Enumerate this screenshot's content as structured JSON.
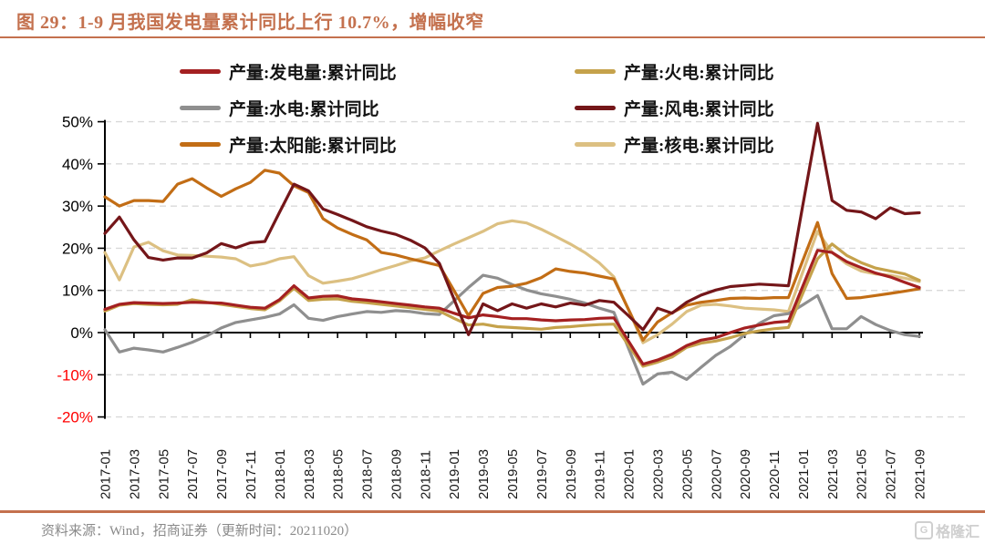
{
  "figure": {
    "title": "图 29：1-9 月我国发电量累计同比上行 10.7%，增幅收窄"
  },
  "legend_order": [
    "generation",
    "thermal",
    "hydro",
    "wind",
    "solar",
    "nuclear"
  ],
  "legend_labels": {
    "generation": "产量:发电量:累计同比",
    "thermal": "产量:火电:累计同比",
    "hydro": "产量:水电:累计同比",
    "wind": "产量:风电:累计同比",
    "solar": "产量:太阳能:累计同比",
    "nuclear": "产量:核电:累计同比"
  },
  "chart_data": {
    "type": "line",
    "title": "1-9月我国发电量累计同比",
    "xlabel": "",
    "ylabel": "",
    "ylim": [
      -20,
      50
    ],
    "grid": "horizontal-dashed",
    "legend_position": "top",
    "yticks": [
      {
        "v": 50,
        "label": "50%"
      },
      {
        "v": 40,
        "label": "40%"
      },
      {
        "v": 30,
        "label": "30%"
      },
      {
        "v": 20,
        "label": "20%"
      },
      {
        "v": 10,
        "label": "10%"
      },
      {
        "v": 0,
        "label": "0%"
      },
      {
        "v": -10,
        "label": "-10%"
      },
      {
        "v": -20,
        "label": "-20%"
      }
    ],
    "negative_tick_color": "#ff0000",
    "tick_color": "#1a1a1a",
    "grid_color": "#d9d9d9",
    "x": [
      "2017-01",
      "2017-02",
      "2017-03",
      "2017-04",
      "2017-05",
      "2017-06",
      "2017-07",
      "2017-08",
      "2017-09",
      "2017-10",
      "2017-11",
      "2017-12",
      "2018-01",
      "2018-02",
      "2018-03",
      "2018-04",
      "2018-05",
      "2018-06",
      "2018-07",
      "2018-08",
      "2018-09",
      "2018-10",
      "2018-11",
      "2018-12",
      "2019-01",
      "2019-02",
      "2019-03",
      "2019-04",
      "2019-05",
      "2019-06",
      "2019-07",
      "2019-08",
      "2019-09",
      "2019-10",
      "2019-11",
      "2019-12",
      "2020-01",
      "2020-02",
      "2020-03",
      "2020-04",
      "2020-05",
      "2020-06",
      "2020-07",
      "2020-08",
      "2020-09",
      "2020-10",
      "2020-11",
      "2020-12",
      "2021-01",
      "2021-02",
      "2021-03",
      "2021-04",
      "2021-05",
      "2021-06",
      "2021-07",
      "2021-08",
      "2021-09"
    ],
    "x_labeled_every": 2,
    "series": [
      {
        "key": "nuclear",
        "name": "产量:核电:累计同比",
        "color": "#dcc082",
        "values": [
          19.0,
          12.5,
          20.3,
          21.4,
          19.4,
          18.4,
          18.3,
          18.1,
          17.9,
          17.5,
          15.8,
          16.4,
          17.5,
          18.0,
          13.5,
          11.7,
          12.2,
          12.8,
          13.8,
          14.9,
          15.9,
          17.0,
          17.7,
          19.4,
          21.0,
          22.5,
          24.0,
          25.8,
          26.5,
          26.0,
          24.5,
          22.8,
          21.0,
          19.0,
          16.5,
          13.2,
          5.4,
          -2.4,
          -0.5,
          2.0,
          5.0,
          6.5,
          6.7,
          6.3,
          5.8,
          5.6,
          5.4,
          5.0,
          14.5,
          24.0,
          19.0,
          16.3,
          14.6,
          13.9,
          13.6,
          12.9,
          12.1
        ]
      },
      {
        "key": "hydro",
        "name": "产量:水电:累计同比",
        "color": "#8f8f8f",
        "values": [
          0.7,
          -4.6,
          -3.7,
          -4.1,
          -4.6,
          -3.5,
          -2.3,
          -0.8,
          1.1,
          2.4,
          3.0,
          3.6,
          4.4,
          6.6,
          3.4,
          2.9,
          3.8,
          4.4,
          5.0,
          4.8,
          5.2,
          5.0,
          4.5,
          4.3,
          7.5,
          10.7,
          13.6,
          12.9,
          11.4,
          10.1,
          9.2,
          8.6,
          7.9,
          7.0,
          5.8,
          4.8,
          -3.7,
          -12.2,
          -9.8,
          -9.4,
          -11.1,
          -8.2,
          -5.4,
          -3.3,
          -0.5,
          2.2,
          4.0,
          4.5,
          6.6,
          8.8,
          0.9,
          0.9,
          3.8,
          1.9,
          0.5,
          -0.5,
          -0.9
        ]
      },
      {
        "key": "solar",
        "name": "产量:太阳能:累计同比",
        "color": "#c26d15",
        "values": [
          32.2,
          30.0,
          31.3,
          31.3,
          31.1,
          35.2,
          36.5,
          34.3,
          32.3,
          34.1,
          35.6,
          38.5,
          37.8,
          34.8,
          33.2,
          27.0,
          24.8,
          23.3,
          22.0,
          19.0,
          18.4,
          17.5,
          16.7,
          15.9,
          10.0,
          4.0,
          9.3,
          10.7,
          11.0,
          11.7,
          13.0,
          15.1,
          14.5,
          14.1,
          13.4,
          12.7,
          5.5,
          -1.8,
          2.5,
          4.7,
          6.5,
          7.2,
          7.6,
          8.1,
          8.2,
          8.1,
          8.3,
          8.3,
          17.2,
          26.1,
          14.0,
          8.1,
          8.3,
          8.8,
          9.3,
          9.8,
          10.4
        ]
      },
      {
        "key": "thermal",
        "name": "产量:火电:累计同比",
        "color": "#c5a24b",
        "values": [
          5.1,
          6.5,
          6.9,
          6.7,
          6.6,
          6.7,
          7.8,
          7.2,
          6.7,
          6.2,
          5.7,
          5.4,
          7.5,
          10.5,
          7.6,
          7.9,
          8.0,
          7.4,
          7.1,
          6.7,
          6.3,
          5.9,
          5.5,
          5.1,
          3.4,
          1.8,
          2.0,
          1.4,
          1.2,
          1.0,
          0.8,
          1.2,
          1.4,
          1.7,
          1.9,
          2.0,
          -3.0,
          -8.0,
          -7.0,
          -5.8,
          -3.5,
          -2.5,
          -2.0,
          -1.2,
          -0.2,
          0.4,
          0.9,
          1.2,
          9.4,
          17.5,
          21.0,
          18.3,
          16.6,
          15.3,
          14.6,
          13.9,
          12.4
        ]
      },
      {
        "key": "generation",
        "name": "产量:发电量:累计同比",
        "color": "#a42021",
        "values": [
          5.5,
          6.7,
          7.1,
          7.0,
          6.9,
          7.0,
          7.2,
          7.1,
          7.0,
          6.5,
          6.0,
          5.8,
          7.8,
          11.1,
          8.2,
          8.6,
          8.7,
          8.0,
          7.7,
          7.3,
          6.9,
          6.5,
          6.1,
          5.8,
          4.6,
          3.5,
          4.2,
          3.8,
          3.3,
          3.3,
          3.0,
          2.8,
          3.0,
          3.1,
          3.4,
          3.5,
          -2.0,
          -7.5,
          -6.5,
          -5.1,
          -3.1,
          -1.8,
          -1.2,
          0.0,
          1.1,
          1.8,
          2.4,
          2.7,
          11.1,
          19.5,
          19.0,
          16.8,
          15.4,
          14.1,
          13.2,
          11.9,
          10.7
        ]
      },
      {
        "key": "wind",
        "name": "产量:风电:累计同比",
        "color": "#741619",
        "values": [
          23.5,
          27.4,
          22.0,
          17.8,
          17.2,
          17.7,
          17.7,
          18.9,
          21.1,
          20.1,
          21.3,
          21.6,
          28.5,
          35.2,
          33.6,
          29.3,
          28.0,
          26.6,
          25.1,
          24.1,
          23.3,
          21.9,
          20.1,
          16.4,
          8.0,
          -0.5,
          6.8,
          5.2,
          6.8,
          5.8,
          6.8,
          6.1,
          7.0,
          6.5,
          7.6,
          7.2,
          4.0,
          0.7,
          5.8,
          4.6,
          7.2,
          8.9,
          10.1,
          10.9,
          11.2,
          11.5,
          11.3,
          11.1,
          30.4,
          49.6,
          31.3,
          29.0,
          28.6,
          27.0,
          29.6,
          28.2,
          28.4
        ]
      }
    ]
  },
  "footer": {
    "source": "资料来源：Wind，招商证券（更新时间：20211020）",
    "logo": "格隆汇",
    "logo_glyph": "G"
  }
}
